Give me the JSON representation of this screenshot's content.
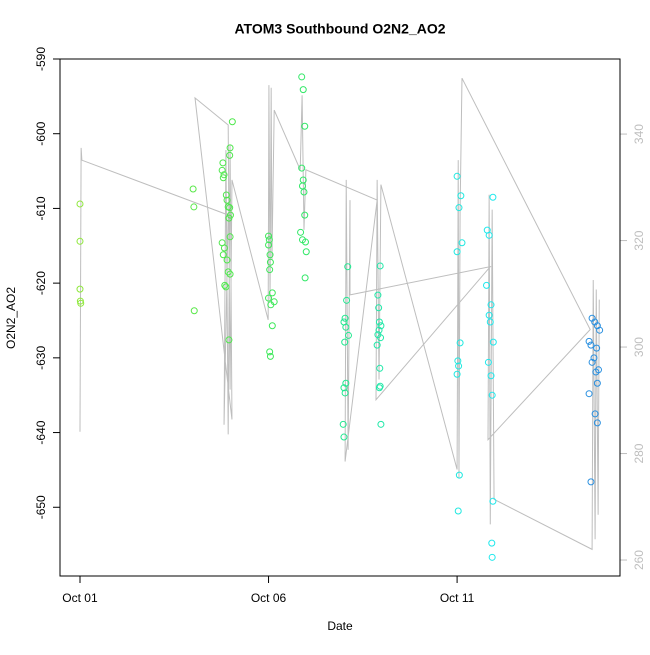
{
  "chart_data": {
    "type": "scatter",
    "title": "ATOM3 Southbound O2N2_AO2",
    "xlabel": "Date",
    "ylabel": "O2N2_AO2",
    "xlim": [
      0.47,
      15.32
    ],
    "xticks": [
      {
        "value": 1,
        "label": "Oct 01"
      },
      {
        "value": 6,
        "label": "Oct 06"
      },
      {
        "value": 11,
        "label": "Oct 11"
      }
    ],
    "ylim": [
      -659.2,
      -590
    ],
    "yticks": [
      -590,
      -600,
      -610,
      -620,
      -630,
      -640,
      -650
    ],
    "y2lim": [
      257,
      354.1
    ],
    "y2ticks": [
      260,
      280,
      300,
      320,
      340
    ],
    "series": [
      {
        "type": "line",
        "axis": "y2",
        "color": "#bebebe",
        "x": [
          1.0,
          1.03,
          1.05,
          4.93,
          4.82,
          4.87,
          4.93,
          4.98,
          5.03,
          4.05,
          4.93,
          4.98,
          5.03,
          5.99,
          6.01,
          6.04,
          6.07,
          6.09,
          6.15,
          6.84,
          6.89,
          6.94,
          6.99,
          8.88,
          8.03,
          8.06,
          8.11,
          8.16,
          8.16,
          11.88,
          8.85,
          8.88,
          8.93,
          8.98,
          11.0,
          11.03,
          11.05,
          11.08,
          11.13,
          14.53,
          11.82,
          11.85,
          11.88,
          11.93,
          11.98,
          14.58,
          14.61,
          14.66,
          14.69,
          14.74,
          14.77
        ],
        "values": [
          284.1,
          337.4,
          335.1,
          324.8,
          285.4,
          337.0,
          283.6,
          338.0,
          286.4,
          346.8,
          341.7,
          292.0,
          331.4,
          305.1,
          349.2,
          308.9,
          348.7,
          316.4,
          344.5,
          333.3,
          347.3,
          322.0,
          333.3,
          327.6,
          278.5,
          331.4,
          280.7,
          327.6,
          309.8,
          315.1,
          290.1,
          331.4,
          293.9,
          330.5,
          277.0,
          335.1,
          275.5,
          325.8,
          350.5,
          303.3,
          282.6,
          328.6,
          266.7,
          325.8,
          271.4,
          262.0,
          312.6,
          263.9,
          310.8,
          268.5,
          308.9
        ]
      },
      {
        "color": "#8ee83a",
        "x": [
          1.0,
          1.0,
          1.0,
          1.01,
          1.02
        ],
        "values": [
          -609.4,
          -614.4,
          -620.8,
          -622.4,
          -622.7
        ]
      },
      {
        "color": "#58e848",
        "x": [
          4.0,
          4.02,
          4.03
        ],
        "values": [
          -607.4,
          -609.8,
          -623.7
        ]
      },
      {
        "color": "#4ee84c",
        "x": [
          5.04,
          4.98,
          4.97,
          4.79,
          4.77,
          4.82,
          4.8,
          4.88,
          4.9,
          4.93,
          4.97,
          4.99,
          4.95,
          4.98,
          4.77,
          4.83,
          4.8,
          4.9,
          4.93,
          4.98,
          4.84,
          4.87,
          4.95
        ],
        "values": [
          -598.4,
          -601.9,
          -602.9,
          -603.9,
          -604.9,
          -605.5,
          -605.9,
          -608.2,
          -608.9,
          -609.8,
          -609.9,
          -610.9,
          -611.3,
          -613.8,
          -614.6,
          -615.3,
          -616.2,
          -616.9,
          -618.5,
          -618.8,
          -620.3,
          -620.5,
          -627.6
        ]
      },
      {
        "color": "#3ee85a",
        "x": [
          6.0,
          6.02,
          6.0,
          6.04,
          6.05,
          6.03,
          6.1,
          6.0,
          6.15,
          6.06,
          6.1,
          6.03,
          6.05
        ],
        "values": [
          -613.7,
          -614.2,
          -614.9,
          -616.2,
          -617.2,
          -618.2,
          -621.3,
          -622.0,
          -622.5,
          -622.9,
          -625.7,
          -629.2,
          -629.8
        ]
      },
      {
        "color": "#30e866",
        "x": [
          6.88,
          6.92,
          6.96,
          6.88,
          6.92,
          6.9,
          6.94,
          6.96,
          6.85,
          6.9,
          6.98,
          7.0,
          6.97
        ],
        "values": [
          -592.4,
          -594.1,
          -599.0,
          -604.6,
          -606.2,
          -607.0,
          -607.8,
          -610.9,
          -613.2,
          -614.2,
          -614.5,
          -615.8,
          -619.3
        ]
      },
      {
        "color": "#22e890",
        "x": [
          8.1,
          8.07,
          8.03,
          8.0,
          8.05,
          8.12,
          8.02,
          8.05,
          8.0,
          8.03,
          7.98,
          8.0
        ],
        "values": [
          -617.8,
          -622.3,
          -624.7,
          -625.2,
          -625.9,
          -627.0,
          -627.9,
          -633.4,
          -634.0,
          -634.7,
          -638.9,
          -640.6
        ]
      },
      {
        "color": "#20e8a8",
        "x": [
          8.96,
          8.9,
          8.92,
          8.94,
          8.98,
          8.93,
          8.9,
          8.97,
          8.88,
          8.95,
          8.96,
          8.94,
          8.98
        ],
        "values": [
          -617.7,
          -621.6,
          -623.3,
          -625.2,
          -625.7,
          -626.3,
          -626.9,
          -627.3,
          -628.3,
          -631.4,
          -633.8,
          -634.0,
          -638.9
        ]
      },
      {
        "color": "#20e8e0",
        "x": [
          11.0,
          11.1,
          11.05,
          11.13,
          11.0,
          11.08,
          11.02,
          11.04,
          11.0,
          11.06,
          11.03
        ],
        "values": [
          -605.7,
          -608.3,
          -609.9,
          -614.6,
          -615.8,
          -628.0,
          -630.4,
          -631.1,
          -632.2,
          -645.7,
          -650.5
        ]
      },
      {
        "color": "#20e8ec",
        "x": [
          11.95,
          11.8,
          11.85,
          11.78,
          11.9,
          11.85,
          11.88,
          11.96,
          11.83,
          11.9,
          11.93,
          11.95,
          11.92,
          11.93
        ],
        "values": [
          -608.5,
          -612.9,
          -613.6,
          -620.3,
          -622.9,
          -624.3,
          -625.2,
          -627.9,
          -630.6,
          -632.4,
          -635.0,
          -649.2,
          -654.8,
          -656.7
        ]
      },
      {
        "color": "#2a90e0",
        "x": [
          14.58,
          14.65,
          14.72,
          14.78,
          14.5,
          14.55,
          14.7,
          14.63,
          14.58,
          14.75,
          14.68,
          14.72,
          14.5,
          14.66,
          14.72,
          14.55
        ],
        "values": [
          -624.7,
          -625.2,
          -625.7,
          -626.3,
          -627.8,
          -628.3,
          -628.7,
          -630.0,
          -630.6,
          -631.6,
          -631.9,
          -633.4,
          -634.8,
          -637.5,
          -638.7,
          -646.6
        ]
      }
    ]
  }
}
